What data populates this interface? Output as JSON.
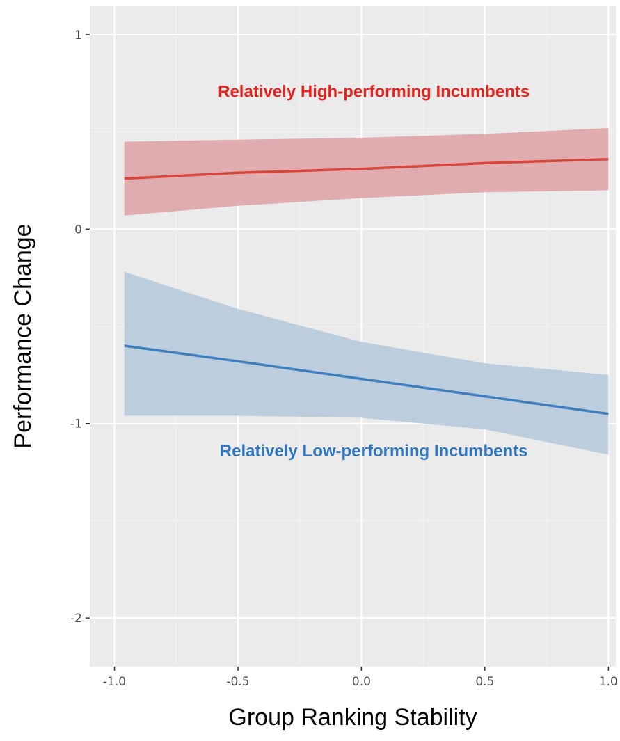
{
  "chart_data": {
    "type": "line",
    "xlabel": "Group Ranking Stability",
    "ylabel": "Performance Change",
    "xlim": [
      -1.1,
      1.03
    ],
    "ylim": [
      -2.25,
      1.15
    ],
    "x_ticks": [
      -1.0,
      -0.5,
      0.0,
      0.5,
      1.0
    ],
    "x_tick_labels": [
      "-1.0",
      "-0.5",
      "0.0",
      "0.5",
      "1.0"
    ],
    "y_ticks": [
      1,
      0,
      -1,
      -2
    ],
    "y_tick_labels": [
      "1",
      "0",
      "-1",
      "-2"
    ],
    "grid": true,
    "series": [
      {
        "color": "#d6463a",
        "band_color": "#dea1a4",
        "x": [
          -0.96,
          -0.5,
          0.0,
          0.5,
          1.0
        ],
        "y": [
          0.26,
          0.29,
          0.31,
          0.34,
          0.36
        ],
        "lower": [
          0.07,
          0.12,
          0.16,
          0.19,
          0.2
        ],
        "upper": [
          0.45,
          0.46,
          0.47,
          0.49,
          0.52
        ]
      },
      {
        "color": "#3f7fbf",
        "band_color": "#b4c9db",
        "x": [
          -0.96,
          -0.5,
          0.0,
          0.5,
          1.0
        ],
        "y": [
          -0.6,
          -0.68,
          -0.77,
          -0.86,
          -0.95
        ],
        "lower": [
          -0.96,
          -0.96,
          -0.97,
          -1.03,
          -1.16
        ],
        "upper": [
          -0.22,
          -0.41,
          -0.58,
          -0.69,
          -0.75
        ]
      }
    ],
    "annotations": [
      {
        "text": "Relatively High-performing Incumbents",
        "color": "#e8231d",
        "x": 0.05,
        "y": 0.68
      },
      {
        "text": "Relatively Low-performing Incumbents",
        "color": "#2f76c0",
        "x": 0.05,
        "y": -1.17
      }
    ]
  }
}
